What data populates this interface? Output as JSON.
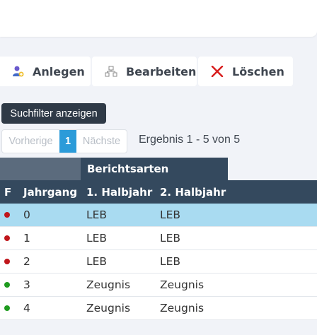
{
  "toolbar": {
    "anlegen": "Anlegen",
    "bearbeiten": "Bearbeiten",
    "loeschen": "Löschen",
    "icons": [
      "user-add-icon",
      "edit-network-icon",
      "delete-x-icon"
    ]
  },
  "filter_button": "Suchfilter anzeigen",
  "pager": {
    "prev": "Vorherige",
    "current": "1",
    "next": "Nächste"
  },
  "result_text": "Ergebnis 1 - 5 von 5",
  "table": {
    "group_header": "Berichtsarten",
    "columns": [
      "F",
      "Jahrgang",
      "1. Halbjahr",
      "2. Halbjahr"
    ],
    "rows": [
      {
        "status": "red",
        "jahrgang": "0",
        "h1": "LEB",
        "h2": "LEB",
        "selected": true
      },
      {
        "status": "red",
        "jahrgang": "1",
        "h1": "LEB",
        "h2": "LEB"
      },
      {
        "status": "red",
        "jahrgang": "2",
        "h1": "LEB",
        "h2": "LEB"
      },
      {
        "status": "green",
        "jahrgang": "3",
        "h1": "Zeugnis",
        "h2": "Zeugnis"
      },
      {
        "status": "green",
        "jahrgang": "4",
        "h1": "Zeugnis",
        "h2": "Zeugnis"
      }
    ]
  },
  "colors": {
    "header_bg": "#34495e",
    "selected_row": "#a9dbf1",
    "pager_active": "#2b9bd9",
    "status_red": "#c0161b",
    "status_green": "#1f9b1f"
  }
}
